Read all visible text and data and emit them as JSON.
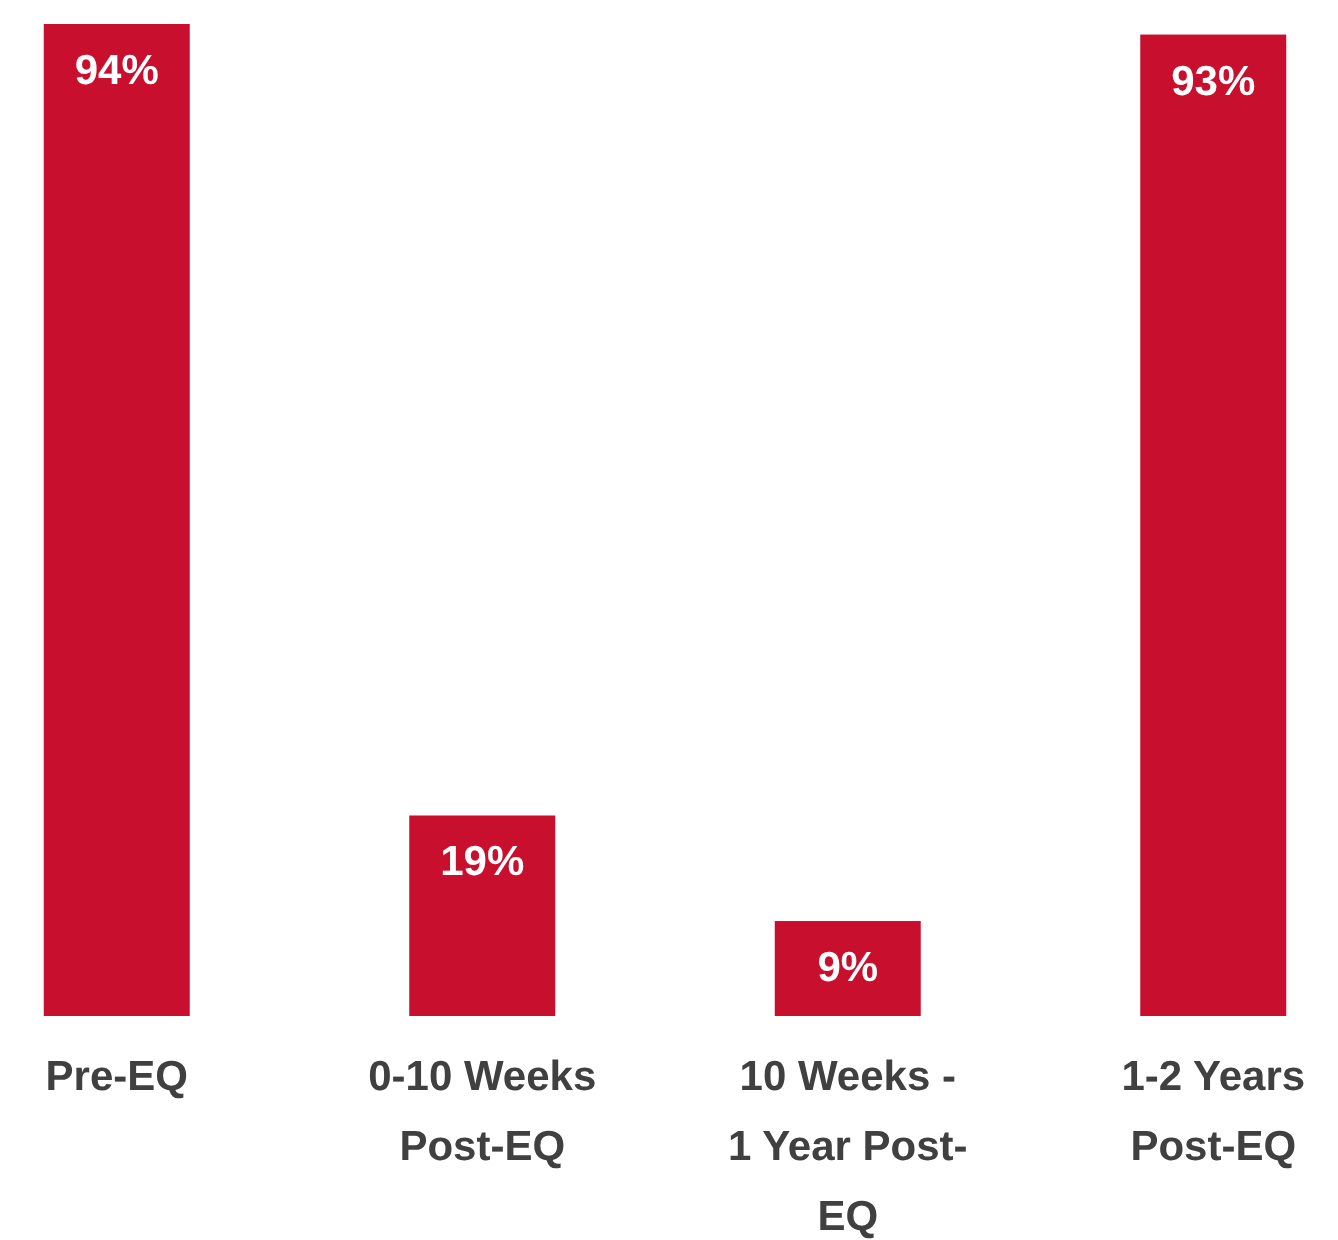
{
  "chart_data": {
    "type": "bar",
    "categories": [
      "Pre-EQ",
      "0-10 Weeks Post-EQ",
      "10 Weeks - 1 Year Post-EQ",
      "1-2 Years Post-EQ"
    ],
    "values": [
      94,
      19,
      9,
      93
    ],
    "value_labels": [
      "94%",
      "19%",
      "9%",
      "93%"
    ],
    "color": "#c8102e"
  }
}
